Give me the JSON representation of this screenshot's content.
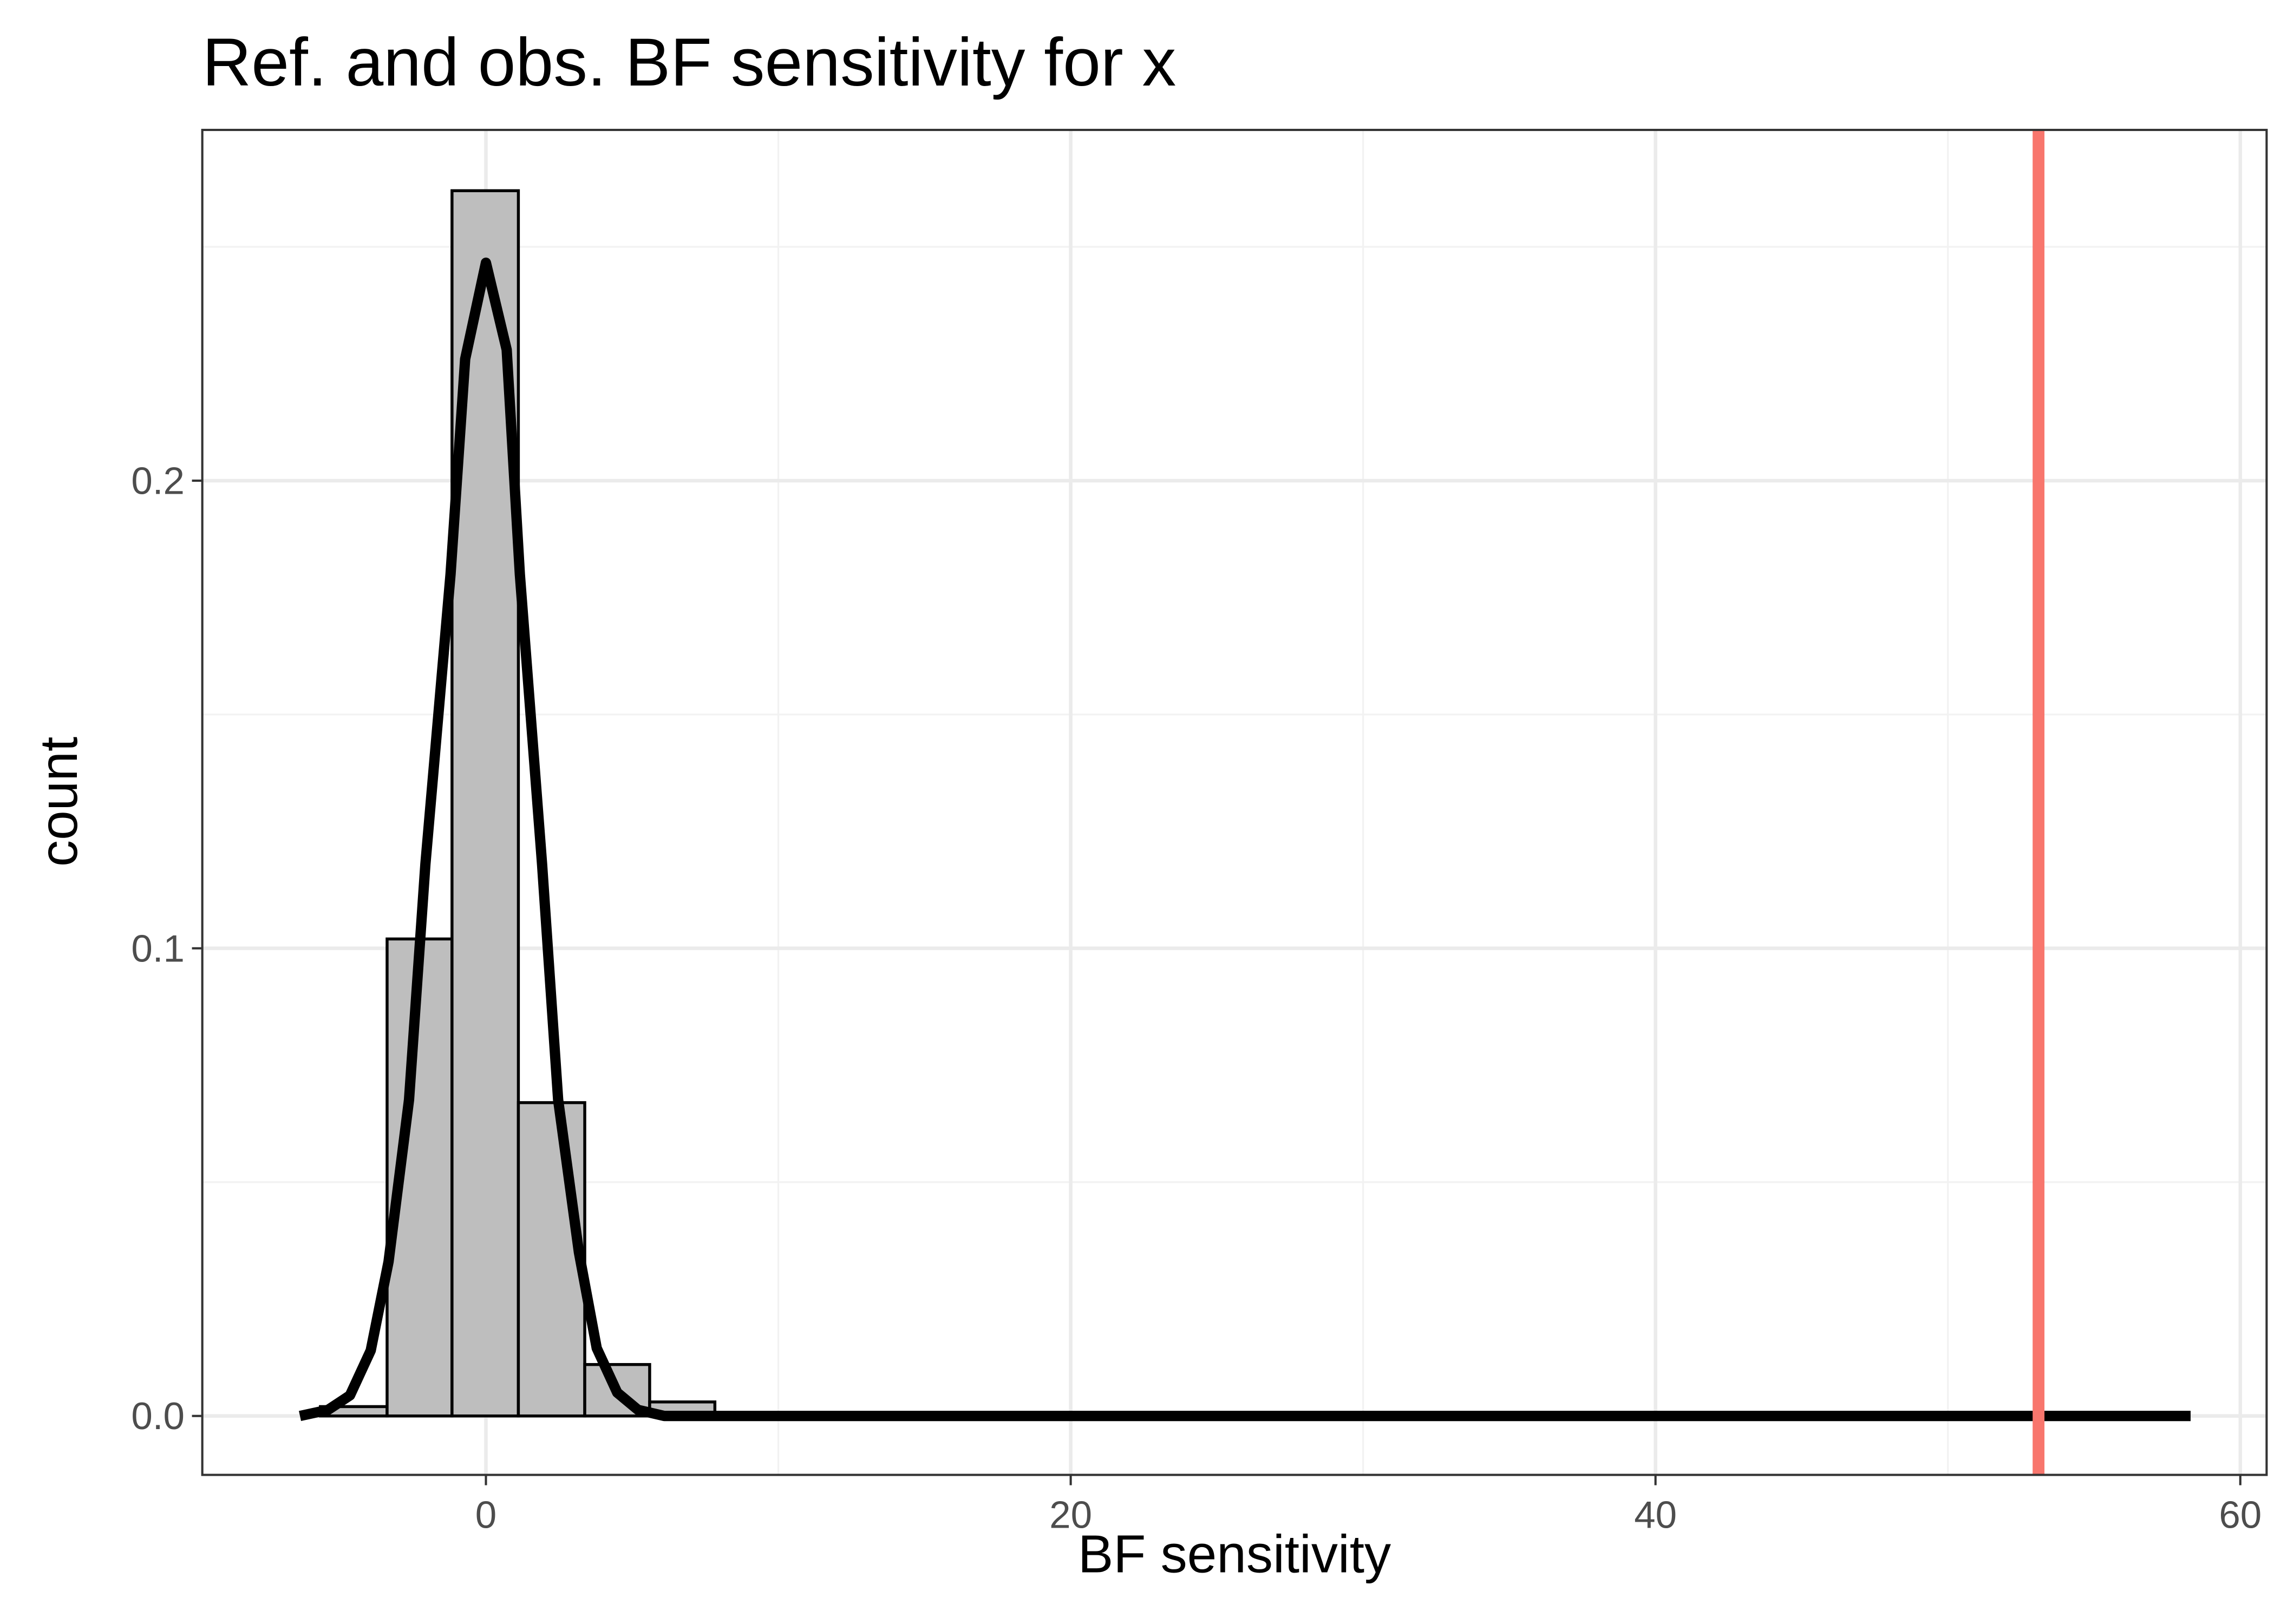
{
  "chart_data": {
    "type": "histogram",
    "title": "Ref. and obs. BF sensitivity for x",
    "x_label": "BF sensitivity",
    "y_label": "count",
    "bins": [
      -5.66,
      -3.38,
      -1.16,
      1.11,
      3.38,
      5.6,
      7.83
    ],
    "counts": [
      0.002,
      0.102,
      0.262,
      0.067,
      0.011,
      0.003
    ],
    "bar_color": "#bebebe",
    "edge_color": "#000000",
    "density": {
      "color": "#000000",
      "x": [
        -6.36,
        -5.4,
        -4.65,
        -3.94,
        -3.33,
        -2.63,
        -2.07,
        -1.21,
        -0.71,
        0,
        0.71,
        1.16,
        1.92,
        2.47,
        3.18,
        3.79,
        4.49,
        5.2,
        6.1,
        58.3
      ],
      "values": [
        0,
        0.0013,
        0.0044,
        0.014,
        0.033,
        0.0676,
        0.118,
        0.18,
        0.226,
        0.2466,
        0.228,
        0.18,
        0.118,
        0.0676,
        0.035,
        0.0145,
        0.005,
        0.0013,
        0,
        0
      ]
    },
    "vline": {
      "x": 53.1,
      "color": "#f8766d"
    },
    "xlim": [
      -9.7,
      60.9
    ],
    "ylim": [
      -0.0126,
      0.275
    ],
    "xticks": [
      0,
      20,
      40,
      60
    ],
    "yticks": [
      0.0,
      0.1,
      0.2
    ],
    "grid": true
  }
}
